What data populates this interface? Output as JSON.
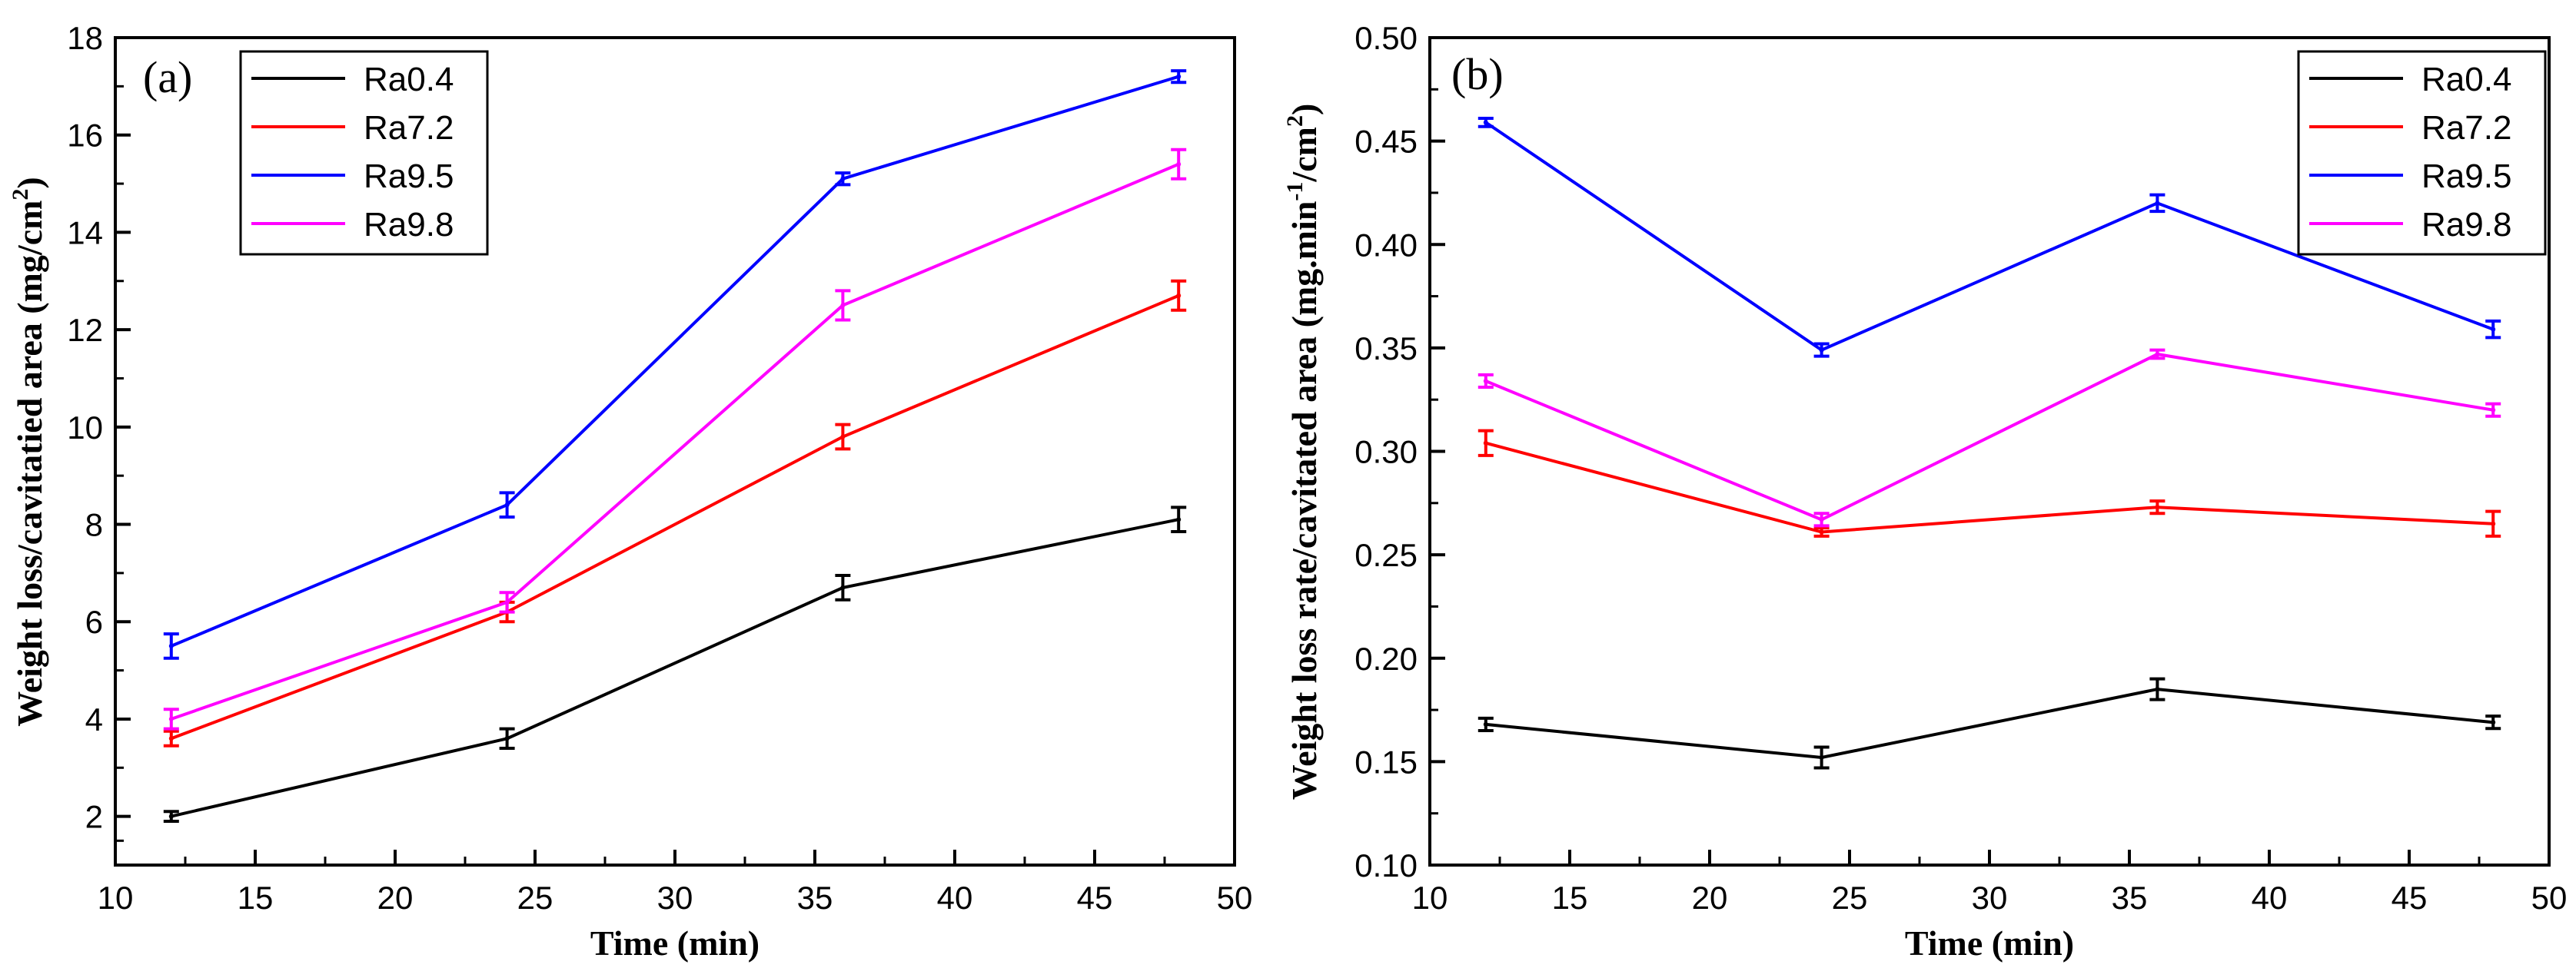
{
  "figure": {
    "panel_a_label": "(a)",
    "panel_b_label": "(b)"
  },
  "chart_data": [
    {
      "type": "line",
      "panel": "(a)",
      "title": "",
      "xlabel": "Time (min)",
      "ylabel_parts": [
        "Weight loss/cavitatied area (mg/cm",
        "2",
        ")"
      ],
      "xlim": [
        10,
        50
      ],
      "ylim": [
        1,
        18
      ],
      "xticks": [
        10,
        15,
        20,
        25,
        30,
        35,
        40,
        45,
        50
      ],
      "yticks": [
        2,
        4,
        6,
        8,
        10,
        12,
        14,
        16,
        18
      ],
      "ytick_decimals": 0,
      "grid": false,
      "legend_position": "top-left",
      "x": [
        12,
        24,
        36,
        48
      ],
      "series": [
        {
          "name": "Ra0.4",
          "color": "#000000",
          "values": [
            2.0,
            3.6,
            6.7,
            8.1
          ],
          "errors": [
            0.1,
            0.2,
            0.25,
            0.25
          ]
        },
        {
          "name": "Ra7.2",
          "color": "#ff0000",
          "values": [
            3.6,
            6.2,
            9.8,
            12.7
          ],
          "errors": [
            0.15,
            0.2,
            0.25,
            0.3
          ]
        },
        {
          "name": "Ra9.5",
          "color": "#0000ff",
          "values": [
            5.5,
            8.4,
            15.1,
            17.2
          ],
          "errors": [
            0.25,
            0.25,
            0.12,
            0.12
          ]
        },
        {
          "name": "Ra9.8",
          "color": "#ff00ff",
          "values": [
            4.0,
            6.4,
            12.5,
            15.4
          ],
          "errors": [
            0.2,
            0.2,
            0.3,
            0.3
          ]
        }
      ]
    },
    {
      "type": "line",
      "panel": "(b)",
      "title": "",
      "xlabel": "Time (min)",
      "ylabel_parts": [
        "Weight loss rate/cavitated area (mg.min",
        "-1",
        "/cm",
        "2",
        ")"
      ],
      "xlim": [
        10,
        50
      ],
      "ylim": [
        0.1,
        0.5
      ],
      "xticks": [
        10,
        15,
        20,
        25,
        30,
        35,
        40,
        45,
        50
      ],
      "yticks": [
        0.1,
        0.15,
        0.2,
        0.25,
        0.3,
        0.35,
        0.4,
        0.45,
        0.5
      ],
      "ytick_decimals": 2,
      "grid": false,
      "legend_position": "top-right",
      "x": [
        12,
        24,
        36,
        48
      ],
      "series": [
        {
          "name": "Ra0.4",
          "color": "#000000",
          "values": [
            0.168,
            0.152,
            0.185,
            0.169
          ],
          "errors": [
            0.003,
            0.005,
            0.005,
            0.003
          ]
        },
        {
          "name": "Ra7.2",
          "color": "#ff0000",
          "values": [
            0.304,
            0.261,
            0.273,
            0.265
          ],
          "errors": [
            0.006,
            0.002,
            0.003,
            0.006
          ]
        },
        {
          "name": "Ra9.5",
          "color": "#0000ff",
          "values": [
            0.459,
            0.349,
            0.42,
            0.359
          ],
          "errors": [
            0.002,
            0.003,
            0.004,
            0.004
          ]
        },
        {
          "name": "Ra9.8",
          "color": "#ff00ff",
          "values": [
            0.334,
            0.267,
            0.347,
            0.32
          ],
          "errors": [
            0.003,
            0.003,
            0.002,
            0.003
          ]
        }
      ]
    }
  ]
}
